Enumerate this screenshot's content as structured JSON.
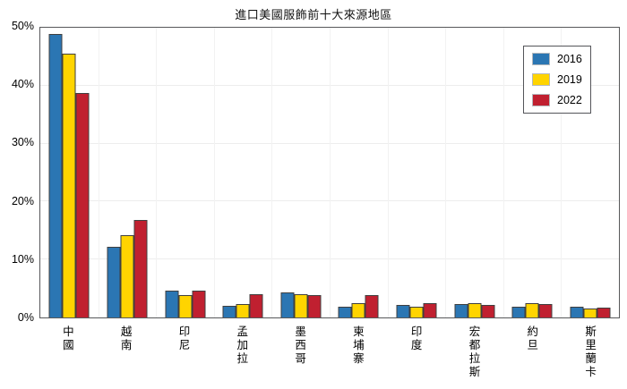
{
  "title": "進口美國服飾前十大來源地區",
  "colors": {
    "series_2016": "#2b76b3",
    "series_2019": "#ffd400",
    "series_2022": "#c02030",
    "bar_edge": "#3f3f3f",
    "frame": "#57585a",
    "gridline": "#ededed"
  },
  "y_axis": {
    "tick_labels": [
      "0%",
      "10%",
      "20%",
      "30%",
      "40%",
      "50%"
    ],
    "tick_values": [
      0,
      10,
      20,
      30,
      40,
      50
    ]
  },
  "chart_data": {
    "type": "bar",
    "title": "進口美國服飾前十大來源地區",
    "xlabel": "",
    "ylabel": "",
    "ylim": [
      0,
      50
    ],
    "grid": true,
    "legend_position": "upper right",
    "categories": [
      "中國",
      "越南",
      "印尼",
      "孟加拉",
      "墨西哥",
      "柬埔寨",
      "印度",
      "宏都拉斯",
      "約旦",
      "斯里蘭卡"
    ],
    "series": [
      {
        "name": "2016",
        "color": "#2b76b3",
        "values": [
          49.0,
          12.3,
          4.6,
          2.0,
          4.3,
          1.8,
          2.1,
          2.3,
          1.9,
          1.9
        ]
      },
      {
        "name": "2019",
        "color": "#ffd400",
        "values": [
          45.6,
          14.3,
          3.9,
          2.4,
          4.1,
          2.5,
          1.9,
          2.5,
          2.5,
          1.5
        ]
      },
      {
        "name": "2022",
        "color": "#c02030",
        "values": [
          38.9,
          16.9,
          4.6,
          4.0,
          3.9,
          3.8,
          2.5,
          2.2,
          2.3,
          1.7
        ]
      }
    ]
  }
}
